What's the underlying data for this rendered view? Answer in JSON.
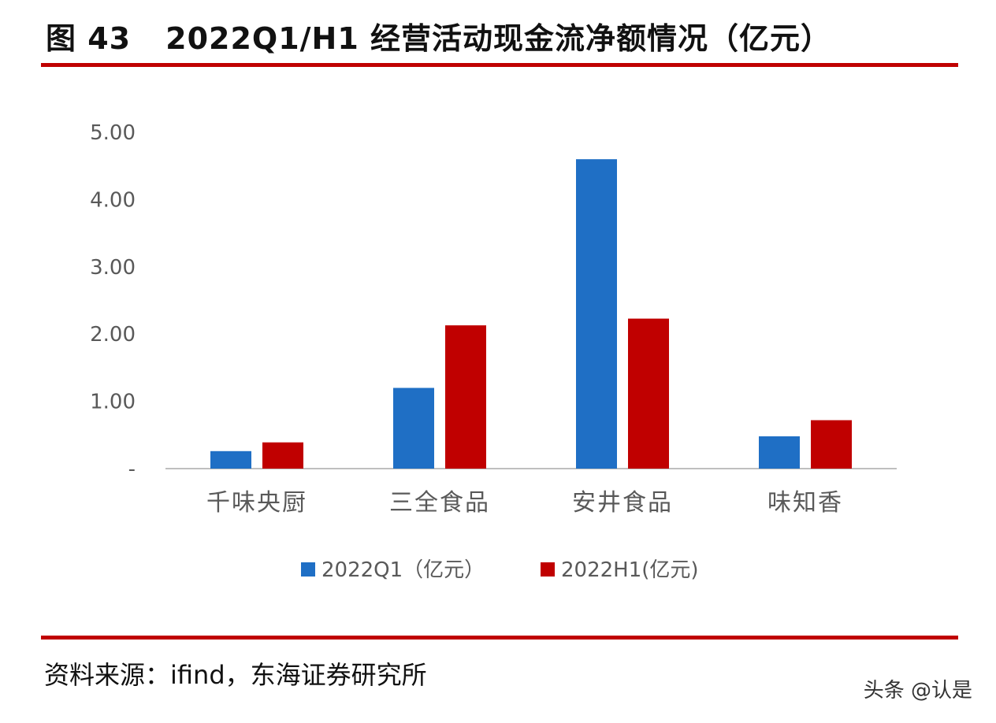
{
  "header": {
    "figure_label": "图 43",
    "title_text": "2022Q1/H1 经营活动现金流净额情况（亿元）"
  },
  "footer": {
    "source": "资料来源：ifind，东海证券研究所",
    "watermark": "头条 @认是"
  },
  "colors": {
    "series_q1": "#1f6fc5",
    "series_h1": "#c00000",
    "rule": "#c00000",
    "axis_text": "#595959"
  },
  "chart_data": {
    "type": "bar",
    "title": "2022Q1/H1 经营活动现金流净额情况（亿元）",
    "categories": [
      "千味央厨",
      "三全食品",
      "安井食品",
      "味知香"
    ],
    "series": [
      {
        "name": "2022Q1（亿元）",
        "values": [
          0.26,
          1.2,
          4.6,
          0.48
        ]
      },
      {
        "name": "2022H1(亿元)",
        "values": [
          0.39,
          2.13,
          2.23,
          0.72
        ]
      }
    ],
    "ylim": [
      0,
      5
    ],
    "yticks": [
      0,
      1,
      2,
      3,
      4,
      5
    ],
    "ytick_labels": [
      "-",
      "1.00",
      "2.00",
      "3.00",
      "4.00",
      "5.00"
    ],
    "legend_position": "bottom-center",
    "grid": false
  }
}
